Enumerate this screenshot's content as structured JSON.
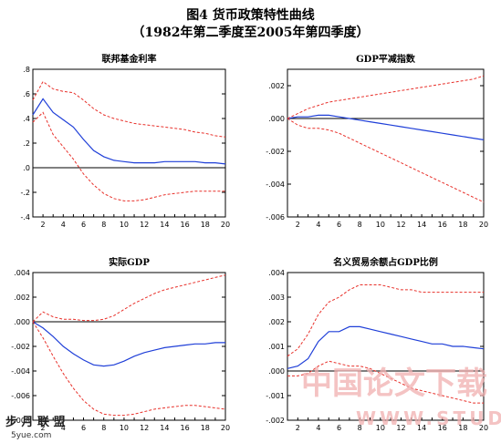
{
  "title_line1": "图4   货币政策特性曲线",
  "title_line2": "（1982年第二季度至2005年第四季度）",
  "watermark": {
    "left_text": "步 月 联 盟",
    "left_url": "5yue.com",
    "right_text": "中国论文下载",
    "right_url": "WWW.STUDA"
  },
  "colors": {
    "response": "#1f3fd8",
    "band": "#e8302a",
    "zero": "#000000"
  },
  "chart_data": [
    {
      "type": "line",
      "title": "联邦基金利率",
      "xlim": [
        1,
        20
      ],
      "x_ticks": [
        2,
        4,
        6,
        8,
        10,
        12,
        14,
        16,
        18,
        20
      ],
      "ylim": [
        -0.4,
        0.8
      ],
      "y_ticks": [
        -0.4,
        -0.2,
        0.0,
        0.2,
        0.4,
        0.6,
        0.8
      ],
      "y_tick_labels": [
        "-.4",
        "-.2",
        ".0",
        ".2",
        ".4",
        ".6",
        ".8"
      ],
      "x": [
        1,
        2,
        3,
        4,
        5,
        6,
        7,
        8,
        9,
        10,
        11,
        12,
        13,
        14,
        15,
        16,
        17,
        18,
        19,
        20
      ],
      "series": [
        {
          "role": "response",
          "style": "solid",
          "values": [
            0.43,
            0.56,
            0.45,
            0.39,
            0.33,
            0.23,
            0.14,
            0.09,
            0.06,
            0.05,
            0.04,
            0.04,
            0.04,
            0.05,
            0.05,
            0.05,
            0.05,
            0.04,
            0.04,
            0.03
          ]
        },
        {
          "role": "upper",
          "style": "dashed",
          "values": [
            0.55,
            0.7,
            0.64,
            0.62,
            0.61,
            0.55,
            0.48,
            0.43,
            0.4,
            0.38,
            0.36,
            0.35,
            0.34,
            0.33,
            0.32,
            0.31,
            0.29,
            0.28,
            0.26,
            0.25
          ]
        },
        {
          "role": "lower",
          "style": "dashed",
          "values": [
            0.37,
            0.45,
            0.27,
            0.17,
            0.07,
            -0.05,
            -0.14,
            -0.21,
            -0.25,
            -0.27,
            -0.27,
            -0.26,
            -0.24,
            -0.22,
            -0.21,
            -0.2,
            -0.19,
            -0.19,
            -0.19,
            -0.19
          ]
        }
      ]
    },
    {
      "type": "line",
      "title": "GDP平减指数",
      "xlim": [
        1,
        20
      ],
      "x_ticks": [
        2,
        4,
        6,
        8,
        10,
        12,
        14,
        16,
        18,
        20
      ],
      "ylim": [
        -0.006,
        0.003
      ],
      "y_ticks": [
        -0.006,
        -0.004,
        -0.002,
        0.0,
        0.002
      ],
      "y_tick_labels": [
        "-.006",
        "-.004",
        "-.002",
        ".000",
        ".002"
      ],
      "x": [
        1,
        2,
        3,
        4,
        5,
        6,
        7,
        8,
        9,
        10,
        11,
        12,
        13,
        14,
        15,
        16,
        17,
        18,
        19,
        20
      ],
      "series": [
        {
          "role": "response",
          "style": "solid",
          "values": [
            0.0,
            0.0001,
            0.0001,
            0.0002,
            0.0002,
            0.0001,
            0.0,
            -0.0001,
            -0.0002,
            -0.0003,
            -0.0004,
            -0.0005,
            -0.0006,
            -0.0007,
            -0.0008,
            -0.0009,
            -0.001,
            -0.0011,
            -0.0012,
            -0.0013
          ]
        },
        {
          "role": "upper",
          "style": "dashed",
          "values": [
            0.0,
            0.0003,
            0.0006,
            0.0008,
            0.001,
            0.0011,
            0.0012,
            0.0013,
            0.0014,
            0.0015,
            0.0016,
            0.0017,
            0.0018,
            0.0019,
            0.002,
            0.0021,
            0.0022,
            0.0023,
            0.0024,
            0.0026
          ]
        },
        {
          "role": "lower",
          "style": "dashed",
          "values": [
            0.0,
            -0.0004,
            -0.0006,
            -0.0006,
            -0.0007,
            -0.0009,
            -0.0012,
            -0.0015,
            -0.0018,
            -0.0021,
            -0.0024,
            -0.0027,
            -0.003,
            -0.0033,
            -0.0036,
            -0.0039,
            -0.0042,
            -0.0045,
            -0.0048,
            -0.0051
          ]
        }
      ]
    },
    {
      "type": "line",
      "title": "实际GDP",
      "xlim": [
        1,
        20
      ],
      "x_ticks": [
        2,
        4,
        6,
        8,
        10,
        12,
        14,
        16,
        18,
        20
      ],
      "ylim": [
        -0.008,
        0.004
      ],
      "y_ticks": [
        -0.008,
        -0.006,
        -0.004,
        -0.002,
        0.0,
        0.002,
        0.004
      ],
      "y_tick_labels": [
        "-.008",
        "-.006",
        "-.004",
        "-.002",
        ".000",
        ".002",
        ".004"
      ],
      "x": [
        1,
        2,
        3,
        4,
        5,
        6,
        7,
        8,
        9,
        10,
        11,
        12,
        13,
        14,
        15,
        16,
        17,
        18,
        19,
        20
      ],
      "series": [
        {
          "role": "response",
          "style": "solid",
          "values": [
            0.0,
            -0.0005,
            -0.0012,
            -0.002,
            -0.0026,
            -0.0031,
            -0.0035,
            -0.0036,
            -0.0035,
            -0.0032,
            -0.0028,
            -0.0025,
            -0.0023,
            -0.0021,
            -0.002,
            -0.0019,
            -0.0018,
            -0.0018,
            -0.0017,
            -0.0017
          ]
        },
        {
          "role": "upper",
          "style": "dashed",
          "values": [
            0.0,
            0.0008,
            0.0004,
            0.0002,
            0.0002,
            0.0001,
            0.0001,
            0.0002,
            0.0005,
            0.001,
            0.0015,
            0.0019,
            0.0023,
            0.0026,
            0.0028,
            0.003,
            0.0032,
            0.0034,
            0.0036,
            0.0038
          ]
        },
        {
          "role": "lower",
          "style": "dashed",
          "values": [
            0.0,
            -0.0013,
            -0.0028,
            -0.0042,
            -0.0054,
            -0.0064,
            -0.0071,
            -0.0075,
            -0.0076,
            -0.0076,
            -0.0075,
            -0.0073,
            -0.0071,
            -0.007,
            -0.0069,
            -0.0068,
            -0.0068,
            -0.0069,
            -0.007,
            -0.0071
          ]
        }
      ]
    },
    {
      "type": "line",
      "title": "名义贸易余额占GDP比例",
      "xlim": [
        1,
        20
      ],
      "x_ticks": [
        2,
        4,
        6,
        8,
        10,
        12,
        14,
        16,
        18,
        20
      ],
      "ylim": [
        -0.002,
        0.004
      ],
      "y_ticks": [
        -0.002,
        -0.001,
        0.0,
        0.001,
        0.002,
        0.003,
        0.004
      ],
      "y_tick_labels": [
        "-.002",
        "-.001",
        ".000",
        ".001",
        ".002",
        ".003",
        ".004"
      ],
      "x": [
        1,
        2,
        3,
        4,
        5,
        6,
        7,
        8,
        9,
        10,
        11,
        12,
        13,
        14,
        15,
        16,
        17,
        18,
        19,
        20
      ],
      "series": [
        {
          "role": "response",
          "style": "solid",
          "values": [
            0.0001,
            0.0002,
            0.0005,
            0.0012,
            0.0016,
            0.0016,
            0.0018,
            0.0018,
            0.0017,
            0.0016,
            0.0015,
            0.0014,
            0.0013,
            0.0012,
            0.0011,
            0.0011,
            0.001,
            0.001,
            0.00095,
            0.0009
          ]
        },
        {
          "role": "upper",
          "style": "dashed",
          "values": [
            0.0006,
            0.0009,
            0.0015,
            0.0023,
            0.0028,
            0.003,
            0.0033,
            0.0035,
            0.0035,
            0.0035,
            0.0034,
            0.0033,
            0.0033,
            0.0032,
            0.0032,
            0.0032,
            0.0032,
            0.0032,
            0.0032,
            0.0032
          ]
        },
        {
          "role": "lower",
          "style": "dashed",
          "values": [
            -0.0002,
            -0.0002,
            -0.0001,
            0.0002,
            0.0004,
            0.0003,
            0.0002,
            0.0002,
            0.0001,
            -0.0001,
            -0.0003,
            -0.0005,
            -0.0007,
            -0.0008,
            -0.0009,
            -0.001,
            -0.0011,
            -0.0012,
            -0.0013,
            -0.0013
          ]
        }
      ]
    }
  ]
}
